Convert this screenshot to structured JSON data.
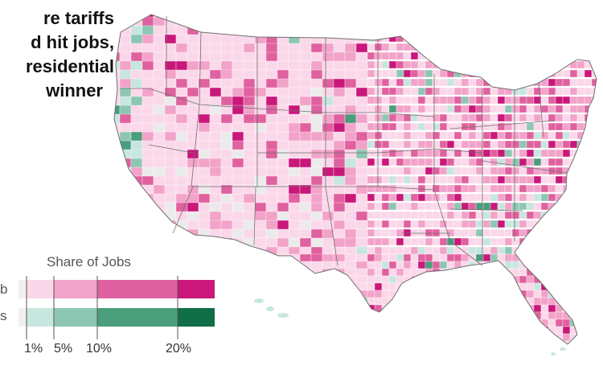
{
  "headline": {
    "lines": [
      "re tariffs",
      "d hit jobs,",
      "residential",
      "winner"
    ]
  },
  "legend": {
    "title": "Share of Jobs",
    "row_labels": [
      "b",
      "s"
    ],
    "tick_labels": [
      "1%",
      "5%",
      "10%",
      "20%"
    ],
    "thresholds": [
      1,
      5,
      10,
      20
    ],
    "pink_scale": [
      "#f0f0f0",
      "#fbd8e9",
      "#f2a3c9",
      "#e0619f",
      "#c9177a"
    ],
    "green_scale": [
      "#f0f0f0",
      "#c7e6df",
      "#8dc7b3",
      "#4a9e7c",
      "#0f6e47"
    ]
  },
  "colors": {
    "no_data": "#ebebeb",
    "border": "#6f6f6f",
    "water": "#ffffff"
  }
}
